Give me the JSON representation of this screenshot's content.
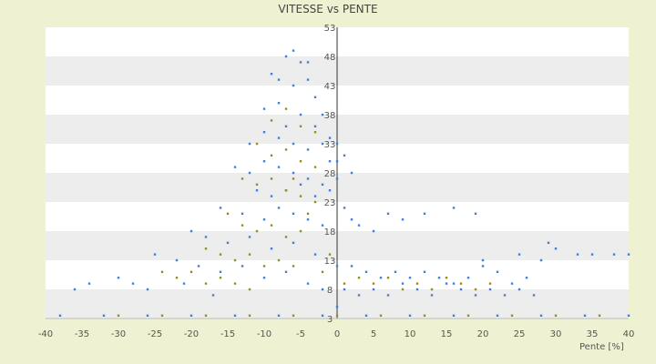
{
  "chart_data": {
    "type": "scatter",
    "title": "VITESSE vs PENTE",
    "xlabel": "Pente [%]",
    "ylabel": "",
    "xlim": [
      -40,
      40
    ],
    "ylim": [
      3,
      53
    ],
    "x_ticks": [
      -40,
      -35,
      -30,
      -25,
      -20,
      -15,
      -10,
      -5,
      0,
      5,
      10,
      15,
      20,
      25,
      30,
      35,
      40
    ],
    "y_ticks": [
      3,
      8,
      13,
      18,
      23,
      28,
      33,
      38,
      43,
      48,
      53
    ],
    "grid": "alternating horizontal bands",
    "legend": "none",
    "series": [
      {
        "color": "#3a7fd8",
        "points": [
          [
            -9,
            45
          ],
          [
            -8,
            44
          ],
          [
            -7,
            48
          ],
          [
            -6,
            49
          ],
          [
            -5,
            47
          ],
          [
            -4,
            47
          ],
          [
            -3,
            41
          ],
          [
            -10,
            39
          ],
          [
            -8,
            40
          ],
          [
            -6,
            43
          ],
          [
            -4,
            44
          ],
          [
            -2,
            38
          ],
          [
            -5,
            38
          ],
          [
            -7,
            36
          ],
          [
            -12,
            33
          ],
          [
            -10,
            35
          ],
          [
            -8,
            34
          ],
          [
            -6,
            33
          ],
          [
            -4,
            32
          ],
          [
            -2,
            33
          ],
          [
            -1,
            30
          ],
          [
            -14,
            29
          ],
          [
            -12,
            28
          ],
          [
            -10,
            30
          ],
          [
            -8,
            29
          ],
          [
            -6,
            28
          ],
          [
            -4,
            27
          ],
          [
            -2,
            26
          ],
          [
            -11,
            25
          ],
          [
            -9,
            24
          ],
          [
            -7,
            25
          ],
          [
            -5,
            26
          ],
          [
            -3,
            24
          ],
          [
            -1,
            25
          ],
          [
            0,
            27
          ],
          [
            -16,
            22
          ],
          [
            -13,
            21
          ],
          [
            -10,
            20
          ],
          [
            -8,
            22
          ],
          [
            -6,
            21
          ],
          [
            -4,
            20
          ],
          [
            -2,
            19
          ],
          [
            -20,
            18
          ],
          [
            -18,
            17
          ],
          [
            -15,
            16
          ],
          [
            -12,
            17
          ],
          [
            -9,
            15
          ],
          [
            -6,
            16
          ],
          [
            -3,
            14
          ],
          [
            -25,
            14
          ],
          [
            -22,
            13
          ],
          [
            -19,
            12
          ],
          [
            -16,
            11
          ],
          [
            -13,
            12
          ],
          [
            -10,
            10
          ],
          [
            -7,
            11
          ],
          [
            -30,
            10
          ],
          [
            -28,
            9
          ],
          [
            -34,
            9
          ],
          [
            -36,
            8
          ],
          [
            -26,
            8
          ],
          [
            -21,
            9
          ],
          [
            -17,
            7
          ],
          [
            -4,
            9
          ],
          [
            -2,
            8
          ],
          [
            1,
            8
          ],
          [
            3,
            7
          ],
          [
            5,
            8
          ],
          [
            7,
            7
          ],
          [
            9,
            9
          ],
          [
            11,
            8
          ],
          [
            13,
            7
          ],
          [
            15,
            9
          ],
          [
            17,
            8
          ],
          [
            19,
            7
          ],
          [
            21,
            8
          ],
          [
            23,
            7
          ],
          [
            25,
            8
          ],
          [
            27,
            7
          ],
          [
            2,
            12
          ],
          [
            4,
            11
          ],
          [
            6,
            10
          ],
          [
            8,
            11
          ],
          [
            10,
            10
          ],
          [
            12,
            11
          ],
          [
            14,
            10
          ],
          [
            16,
            9
          ],
          [
            18,
            10
          ],
          [
            20,
            12
          ],
          [
            22,
            11
          ],
          [
            24,
            9
          ],
          [
            26,
            10
          ],
          [
            30,
            15
          ],
          [
            29,
            16
          ],
          [
            1,
            22
          ],
          [
            2,
            20
          ],
          [
            3,
            19
          ],
          [
            5,
            18
          ],
          [
            7,
            21
          ],
          [
            9,
            20
          ],
          [
            12,
            21
          ],
          [
            16,
            22
          ],
          [
            19,
            21
          ],
          [
            20,
            13
          ],
          [
            25,
            14
          ],
          [
            28,
            13
          ],
          [
            33,
            14
          ],
          [
            35,
            14
          ],
          [
            38,
            14
          ],
          [
            40,
            14
          ],
          [
            -38,
            3.5
          ],
          [
            -32,
            3.5
          ],
          [
            -26,
            3.5
          ],
          [
            -20,
            3.5
          ],
          [
            -14,
            3.5
          ],
          [
            -8,
            3.5
          ],
          [
            -2,
            3.5
          ],
          [
            4,
            3.5
          ],
          [
            10,
            3.5
          ],
          [
            16,
            3.5
          ],
          [
            22,
            3.5
          ],
          [
            28,
            3.5
          ],
          [
            34,
            3.5
          ],
          [
            40,
            3.5
          ],
          [
            0,
            5
          ],
          [
            0,
            12
          ],
          [
            0,
            30
          ],
          [
            0,
            33
          ],
          [
            1,
            31
          ],
          [
            -1,
            34
          ],
          [
            2,
            28
          ],
          [
            -3,
            36
          ]
        ]
      },
      {
        "color": "#9a8a22",
        "points": [
          [
            -9,
            37
          ],
          [
            -7,
            39
          ],
          [
            -5,
            36
          ],
          [
            -3,
            35
          ],
          [
            -11,
            33
          ],
          [
            -9,
            31
          ],
          [
            -7,
            32
          ],
          [
            -5,
            30
          ],
          [
            -3,
            29
          ],
          [
            -13,
            27
          ],
          [
            -11,
            26
          ],
          [
            -9,
            27
          ],
          [
            -7,
            25
          ],
          [
            -5,
            24
          ],
          [
            -3,
            23
          ],
          [
            -15,
            21
          ],
          [
            -13,
            19
          ],
          [
            -11,
            18
          ],
          [
            -9,
            19
          ],
          [
            -7,
            17
          ],
          [
            -5,
            18
          ],
          [
            -18,
            15
          ],
          [
            -16,
            14
          ],
          [
            -14,
            13
          ],
          [
            -12,
            14
          ],
          [
            -10,
            12
          ],
          [
            -8,
            13
          ],
          [
            -6,
            12
          ],
          [
            -24,
            11
          ],
          [
            -22,
            10
          ],
          [
            -20,
            11
          ],
          [
            -18,
            9
          ],
          [
            -16,
            10
          ],
          [
            -14,
            9
          ],
          [
            -12,
            8
          ],
          [
            1,
            9
          ],
          [
            3,
            10
          ],
          [
            5,
            9
          ],
          [
            7,
            10
          ],
          [
            9,
            8
          ],
          [
            11,
            9
          ],
          [
            13,
            8
          ],
          [
            15,
            10
          ],
          [
            17,
            9
          ],
          [
            19,
            8
          ],
          [
            21,
            9
          ],
          [
            -2,
            11
          ],
          [
            -1,
            14
          ],
          [
            -4,
            21
          ],
          [
            -6,
            27
          ],
          [
            -30,
            3.5
          ],
          [
            -24,
            3.5
          ],
          [
            -18,
            3.5
          ],
          [
            -12,
            3.5
          ],
          [
            -6,
            3.5
          ],
          [
            0,
            3.5
          ],
          [
            6,
            3.5
          ],
          [
            12,
            3.5
          ],
          [
            18,
            3.5
          ],
          [
            24,
            3.5
          ],
          [
            30,
            3.5
          ],
          [
            36,
            3.5
          ]
        ]
      }
    ]
  }
}
